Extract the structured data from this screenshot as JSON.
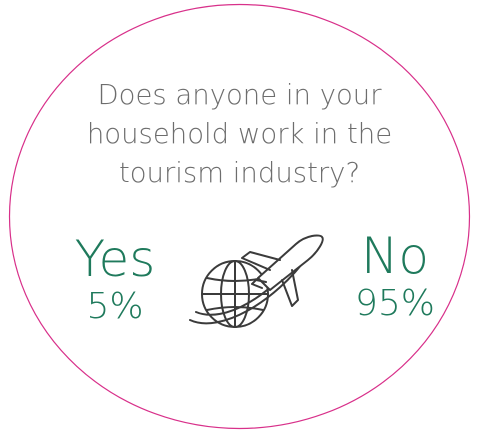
{
  "question_lines": [
    "Does anyone in your",
    "household work in the",
    "tourism industry?"
  ],
  "yes": {
    "label": "Yes",
    "value": "5%"
  },
  "no": {
    "label": "No",
    "value": "95%"
  },
  "icon": "globe-airplane-icon",
  "colors": {
    "accent": "#1f7a5c",
    "question_text": "#6d6d6d",
    "outline": "#d8308a",
    "icon_stroke": "#3b3b3b"
  }
}
